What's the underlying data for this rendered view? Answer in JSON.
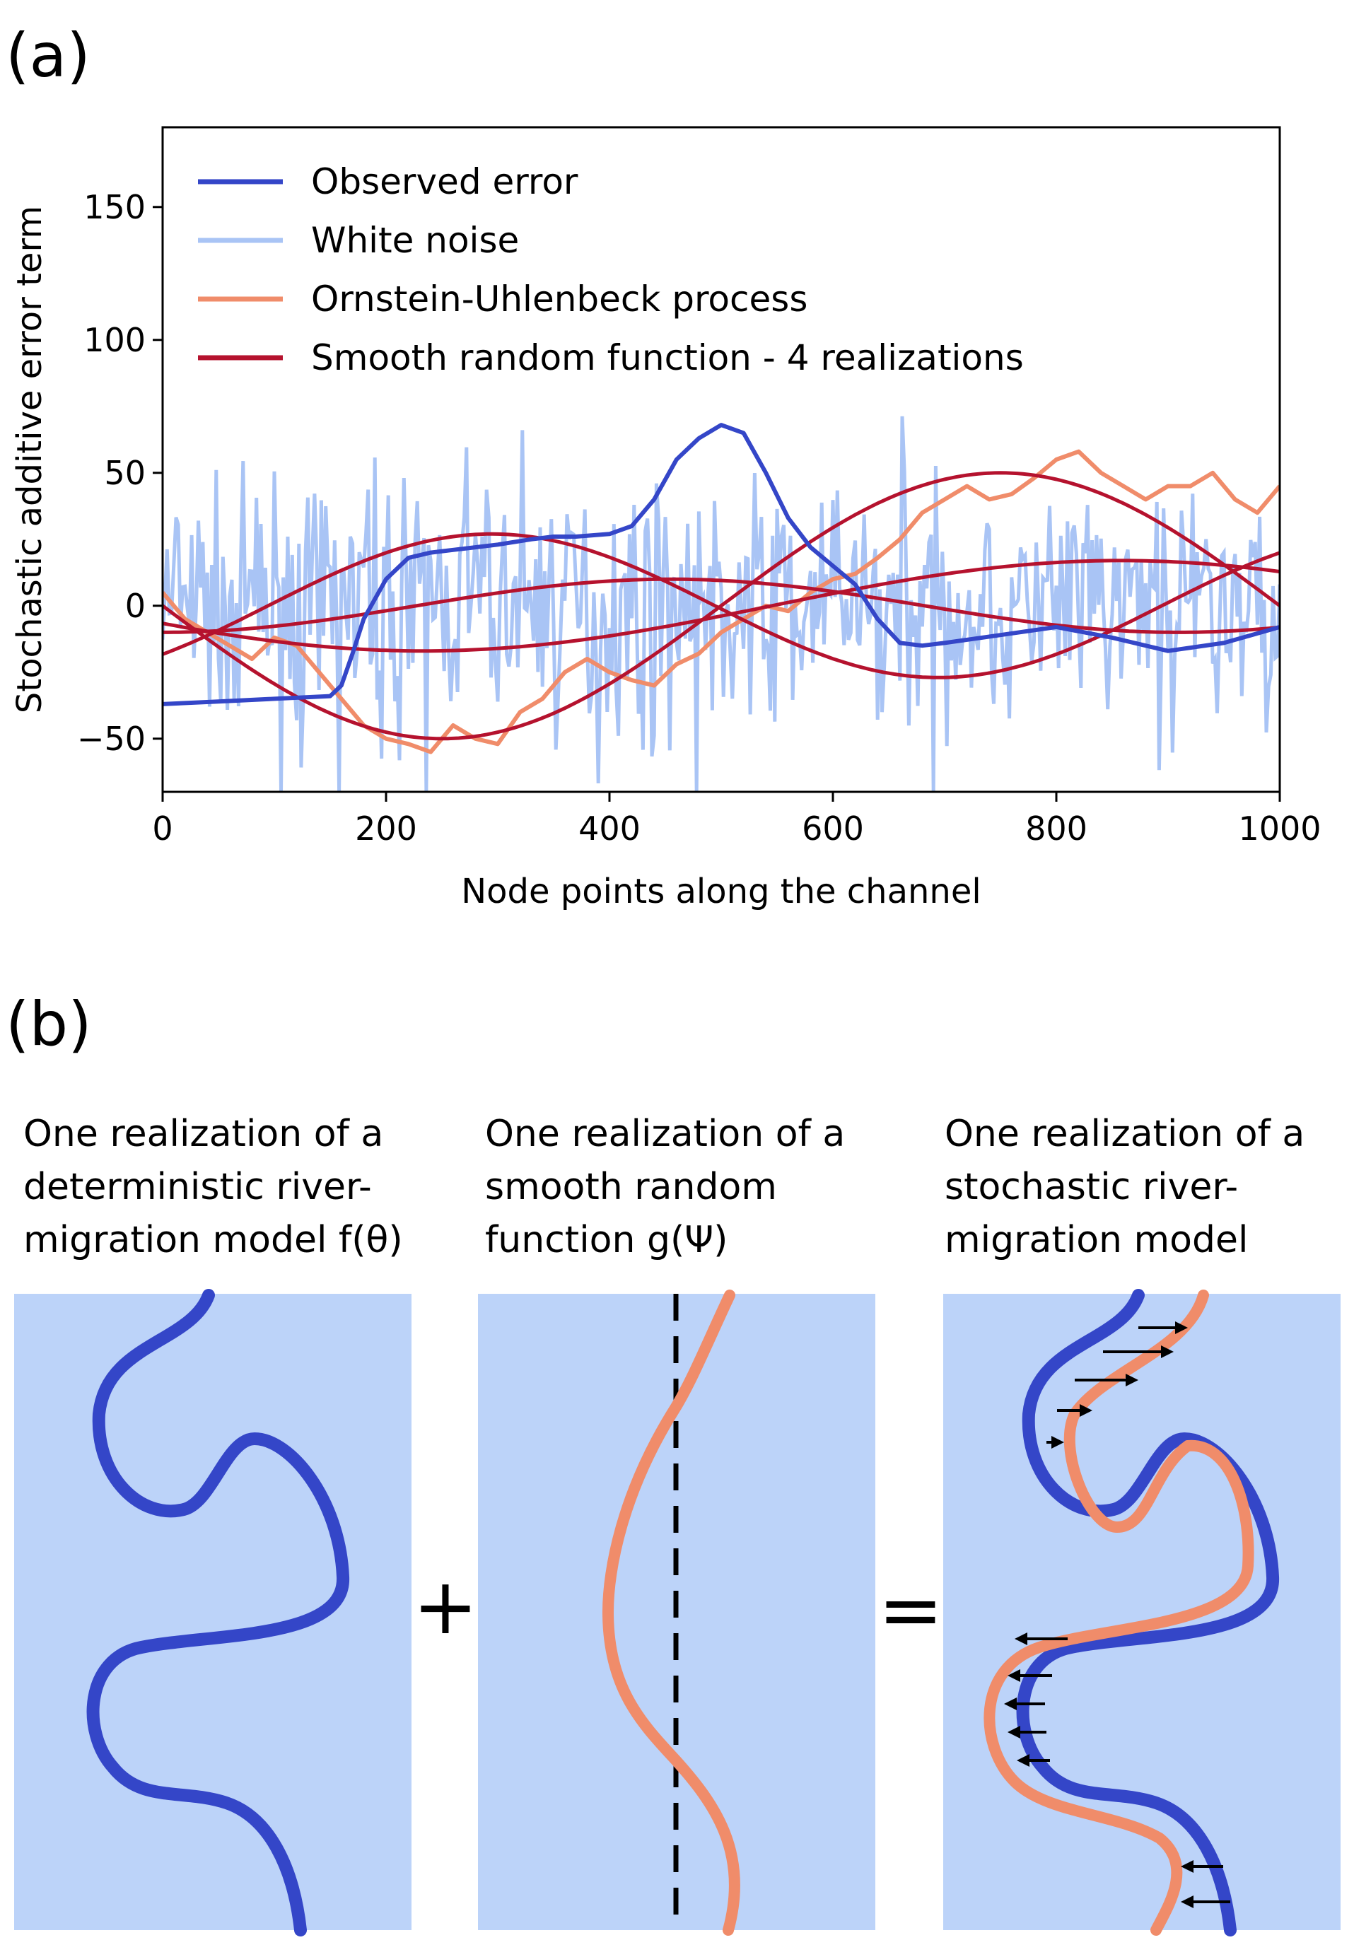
{
  "panel_labels": {
    "a": "(a)",
    "b": "(b)"
  },
  "chart_data": {
    "type": "line",
    "title": "",
    "xlabel": "Node points along the channel",
    "ylabel": "Stochastic additive error term",
    "xlim": [
      0,
      1000
    ],
    "ylim": [
      -70,
      180
    ],
    "xticks": [
      0,
      200,
      400,
      600,
      800,
      1000
    ],
    "yticks": [
      -50,
      0,
      50,
      100,
      150
    ],
    "grid": false,
    "legend_position": "top-left",
    "legend": [
      {
        "label": "Observed error",
        "color": "#3446c8"
      },
      {
        "label": "White noise",
        "color": "#a9c4f5"
      },
      {
        "label": "Ornstein-Uhlenbeck process",
        "color": "#f08c6a"
      },
      {
        "label": "Smooth random function - 4 realizations",
        "color": "#b5122e"
      }
    ],
    "series": [
      {
        "name": "Observed error",
        "color": "#3446c8",
        "x": [
          0,
          50,
          100,
          150,
          160,
          170,
          180,
          200,
          220,
          240,
          260,
          280,
          300,
          330,
          350,
          370,
          400,
          420,
          440,
          460,
          480,
          500,
          520,
          540,
          560,
          580,
          600,
          620,
          640,
          660,
          680,
          700,
          750,
          800,
          850,
          900,
          950,
          1000
        ],
        "y": [
          -37,
          -36,
          -35,
          -34,
          -30,
          -18,
          -5,
          10,
          18,
          20,
          21,
          22,
          23,
          25,
          26,
          26,
          27,
          30,
          40,
          55,
          63,
          68,
          65,
          50,
          33,
          22,
          15,
          8,
          -5,
          -14,
          -15,
          -14,
          -11,
          -8,
          -12,
          -17,
          -14,
          -8
        ]
      },
      {
        "name": "White noise",
        "color": "#a9c4f5",
        "noise": {
          "amplitude": 22,
          "min": -70,
          "max": 75,
          "seed": 7
        }
      },
      {
        "name": "Ornstein-Uhlenbeck process",
        "color": "#f08c6a",
        "x": [
          0,
          20,
          40,
          60,
          80,
          100,
          120,
          140,
          160,
          180,
          200,
          220,
          240,
          260,
          280,
          300,
          320,
          340,
          360,
          380,
          400,
          420,
          440,
          460,
          480,
          500,
          520,
          540,
          560,
          580,
          600,
          620,
          640,
          660,
          680,
          700,
          720,
          740,
          760,
          780,
          800,
          820,
          840,
          860,
          880,
          900,
          920,
          940,
          960,
          980,
          1000
        ],
        "y": [
          5,
          -5,
          -10,
          -15,
          -20,
          -12,
          -15,
          -25,
          -35,
          -45,
          -50,
          -52,
          -55,
          -45,
          -50,
          -52,
          -40,
          -35,
          -25,
          -20,
          -25,
          -28,
          -30,
          -22,
          -18,
          -10,
          -5,
          0,
          -2,
          5,
          10,
          12,
          18,
          25,
          35,
          40,
          45,
          40,
          42,
          48,
          55,
          58,
          50,
          45,
          40,
          45,
          45,
          50,
          40,
          35,
          45
        ]
      },
      {
        "name": "Smooth random function - 4 realizations",
        "color": "#b5122e",
        "functions": [
          {
            "mean": 0,
            "amp": 50,
            "freq": 1.0,
            "phase": 0.0
          },
          {
            "mean": 0,
            "amp": 27,
            "freq": 1.25,
            "phase": 2.4
          },
          {
            "mean": 0,
            "amp": 17,
            "freq": 0.8,
            "phase": 0.4
          },
          {
            "mean": 0,
            "amp": 10,
            "freq": 1.1,
            "phase": 1.57
          }
        ]
      }
    ]
  },
  "diagram": {
    "captions": [
      [
        "One realization of a",
        "deterministic river-",
        "migration model f(θ)"
      ],
      [
        "One realization of a",
        "smooth random",
        "function g(Ψ)"
      ],
      [
        "One realization of a",
        "stochastic river-",
        "migration model"
      ]
    ],
    "operators": [
      "+",
      "="
    ],
    "colors": {
      "panel_fill": "#bcd3f9",
      "deterministic": "#3446c8",
      "stochastic": "#f08c6a",
      "axis": "#000000"
    }
  }
}
